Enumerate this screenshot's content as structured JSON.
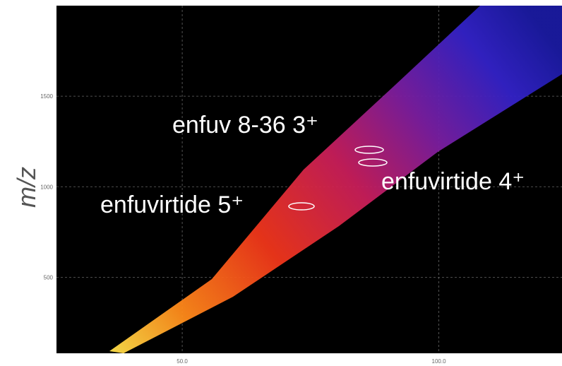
{
  "chart_data": {
    "type": "density",
    "y_label": "m/z",
    "ylim": [
      80,
      2000
    ],
    "yticks": [
      500,
      1000,
      1500
    ],
    "xlim": [
      25.5,
      124
    ],
    "xticks": [
      {
        "value": 50,
        "label": "50.0"
      },
      {
        "value": 100,
        "label": "100.0"
      }
    ],
    "grid": true,
    "annotations": [
      "enfuv 8-36 3⁺",
      "enfuvirtide 4⁺",
      "enfuvirtide 5⁺"
    ]
  }
}
